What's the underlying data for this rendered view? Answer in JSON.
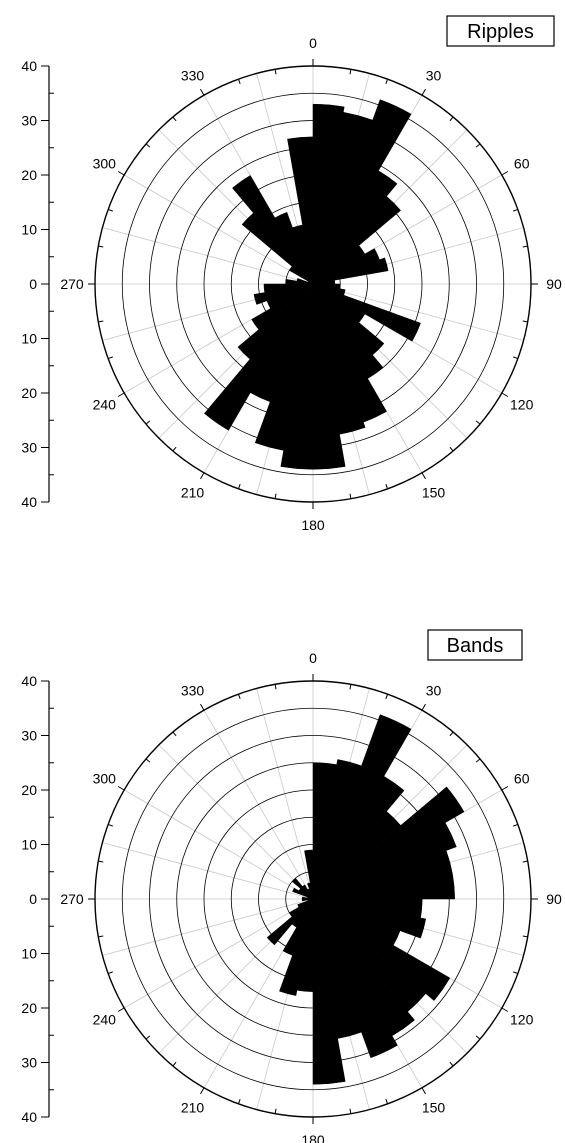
{
  "chart_data": [
    {
      "type": "polar-bar",
      "title": "Ripples",
      "radial_range": [
        0,
        40
      ],
      "radial_ticks": [
        40,
        30,
        20,
        10,
        0,
        10,
        20,
        30,
        40
      ],
      "angle_labels": [
        "0",
        "30",
        "60",
        "90",
        "120",
        "150",
        "180",
        "210",
        "240",
        "270",
        "300",
        "330"
      ],
      "bin_width_deg": 10,
      "direction": "clockwise-from-north",
      "grid": true,
      "bin_start_deg": [
        0,
        10,
        20,
        30,
        40,
        50,
        60,
        70,
        80,
        90,
        100,
        110,
        120,
        130,
        140,
        150,
        160,
        170,
        180,
        190,
        200,
        210,
        220,
        230,
        240,
        250,
        260,
        270,
        280,
        290,
        300,
        310,
        320,
        330,
        340,
        350
      ],
      "values": [
        33,
        32,
        36,
        24,
        21,
        11,
        13,
        14,
        4,
        5,
        6,
        21,
        11,
        17,
        20,
        27,
        28,
        34,
        34,
        31,
        23,
        31,
        18,
        13,
        9,
        11,
        9,
        5,
        3,
        1,
        5,
        17,
        23,
        14,
        11,
        27
      ]
    },
    {
      "type": "polar-bar",
      "title": "Bands",
      "radial_range": [
        0,
        40
      ],
      "radial_ticks": [
        40,
        30,
        20,
        10,
        0,
        10,
        20,
        30,
        40
      ],
      "angle_labels": [
        "0",
        "30",
        "60",
        "90",
        "120",
        "150",
        "180",
        "210",
        "240",
        "270",
        "300",
        "330"
      ],
      "bin_width_deg": 10,
      "direction": "clockwise-from-north",
      "grid": true,
      "bin_start_deg": [
        0,
        10,
        20,
        30,
        40,
        50,
        60,
        70,
        80,
        90,
        100,
        110,
        120,
        130,
        140,
        150,
        160,
        170,
        180,
        190,
        200,
        210,
        220,
        230,
        240,
        250,
        260,
        270,
        280,
        290,
        300,
        310,
        320,
        330,
        340,
        350
      ],
      "values": [
        25,
        26,
        36,
        26,
        21,
        32,
        28,
        26,
        26,
        20,
        21,
        17,
        29,
        27,
        29,
        31,
        26,
        34,
        17,
        18,
        11,
        6,
        11,
        5,
        3,
        1,
        2,
        2,
        1,
        4,
        3,
        5,
        3,
        2,
        3,
        9
      ]
    }
  ]
}
